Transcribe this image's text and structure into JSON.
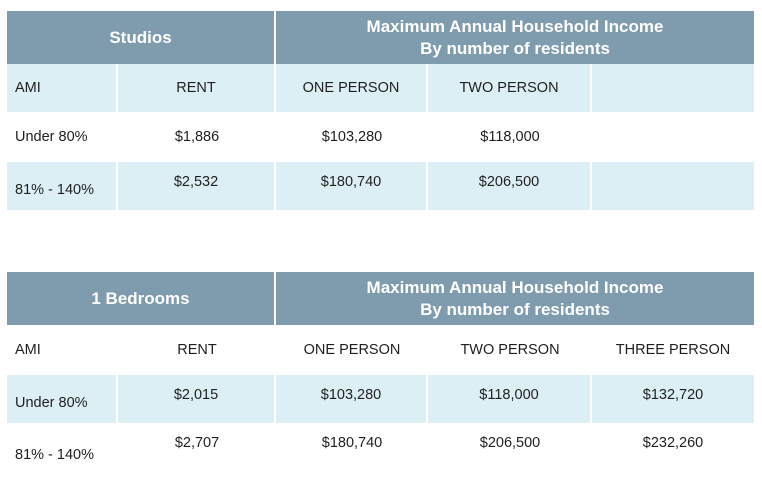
{
  "studios": {
    "unit_type": "Studios",
    "income_title_line1": "Maximum Annual Household Income",
    "income_title_line2": "By number of residents",
    "headers": [
      "AMI",
      "RENT",
      "ONE PERSON",
      "TWO PERSON",
      ""
    ],
    "rows": [
      [
        "Under 80%",
        "$1,886",
        "$103,280",
        "$118,000",
        ""
      ],
      [
        "81% - 140%",
        "$2,532",
        "$180,740",
        "$206,500",
        ""
      ]
    ]
  },
  "one_bedroom": {
    "unit_type": "1 Bedrooms",
    "income_title_line1": "Maximum Annual Household Income",
    "income_title_line2": "By number of residents",
    "headers": [
      "AMI",
      "RENT",
      "ONE PERSON",
      "TWO PERSON",
      "THREE PERSON"
    ],
    "rows": [
      [
        "Under 80%",
        "$2,015",
        "$103,280",
        "$118,000",
        "$132,720"
      ],
      [
        "81% - 140%",
        "$2,707",
        "$180,740",
        "$206,500",
        "$232,260"
      ]
    ]
  },
  "colors": {
    "header_bg": "#7f9bae",
    "stripe_bg": "#dceff4"
  }
}
